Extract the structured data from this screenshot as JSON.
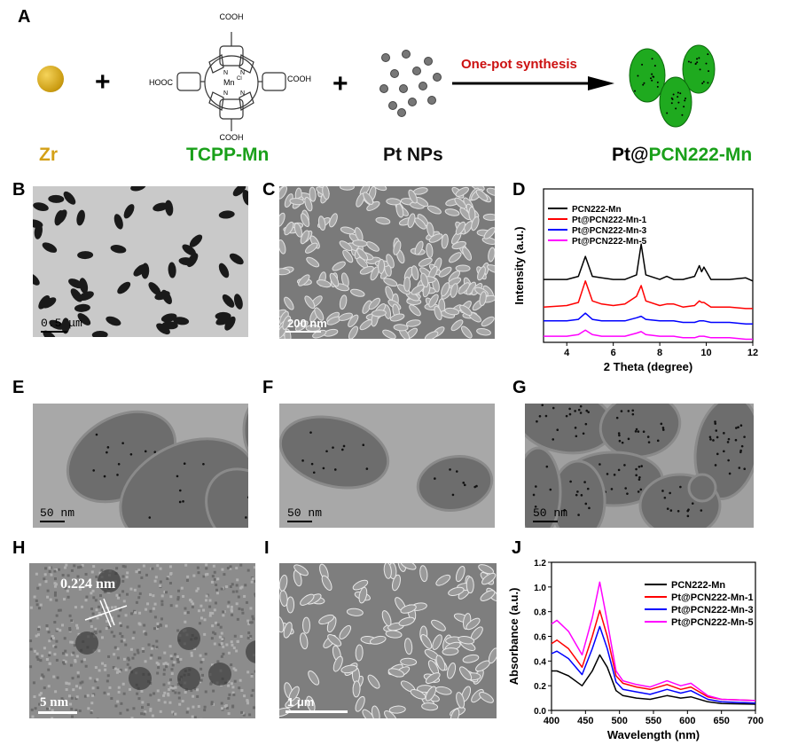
{
  "panel_labels": [
    "A",
    "B",
    "C",
    "D",
    "E",
    "F",
    "G",
    "H",
    "I",
    "J"
  ],
  "scheme": {
    "zr_label": "Zr",
    "plus": "+",
    "tcpp_label": "TCPP-Mn",
    "molecule_labels": {
      "cooh": "COOH",
      "hooc": "HOOC",
      "metal": "Mn",
      "ligand": "Cl",
      "n": "N"
    },
    "pt_label": "Pt NPs",
    "arrow_label": "One-pot synthesis",
    "product_prefix": "Pt@",
    "product_main": "PCN222-Mn",
    "colors": {
      "zr": "#d4a017",
      "green": "#1aa01a",
      "red": "#cc1111"
    }
  },
  "micrographs": {
    "B": {
      "scale": "0.5 μm"
    },
    "C": {
      "scale": "200 nm"
    },
    "E": {
      "scale": "50 nm"
    },
    "F": {
      "scale": "50 nm"
    },
    "G": {
      "scale": "50 nm"
    },
    "H": {
      "scale": "5 nm",
      "annotation": "0.224 nm"
    },
    "I": {
      "scale": "1 μm"
    }
  },
  "chart_data": [
    {
      "panel": "D",
      "type": "line",
      "xlabel": "2 Theta (degree)",
      "ylabel": "Intensity (a.u.)",
      "xlim": [
        3,
        12
      ],
      "xticks": [
        4,
        6,
        8,
        10,
        12
      ],
      "ylim": [
        0,
        100
      ],
      "yticks_shown": false,
      "legend": "top-left",
      "x": [
        3,
        4,
        4.5,
        4.8,
        5.1,
        5.5,
        6,
        6.5,
        7.0,
        7.2,
        7.4,
        8,
        8.3,
        8.6,
        9,
        9.5,
        9.7,
        9.8,
        9.9,
        10.2,
        11,
        11.7,
        12
      ],
      "series": [
        {
          "name": "PCN222-Mn",
          "color": "#000000",
          "values": [
            41,
            41,
            43,
            56,
            43,
            42,
            41,
            41,
            44,
            64,
            44,
            41,
            43,
            41,
            41,
            43,
            50,
            46,
            49,
            41,
            41,
            42,
            40
          ]
        },
        {
          "name": "Pt@PCN222-Mn-1",
          "color": "#ff0000",
          "values": [
            23,
            24,
            26,
            40,
            27,
            25,
            24,
            25,
            30,
            37,
            27,
            24,
            25,
            25,
            23,
            24,
            27,
            26,
            26,
            23,
            23,
            22,
            22
          ]
        },
        {
          "name": "Pt@PCN222-Mn-3",
          "color": "#0000ff",
          "values": [
            14,
            14,
            15,
            19,
            15,
            14,
            14,
            14,
            16,
            17,
            15,
            14,
            14,
            14,
            13,
            13,
            14,
            14,
            14,
            13,
            13,
            12,
            12
          ]
        },
        {
          "name": "Pt@PCN222-Mn-5",
          "color": "#ff00ff",
          "values": [
            4,
            4,
            5,
            8,
            5,
            4,
            4,
            4,
            6,
            7,
            5,
            4,
            4,
            4,
            3,
            3,
            4,
            4,
            4,
            3,
            3,
            2,
            2
          ]
        }
      ]
    },
    {
      "panel": "J",
      "type": "line",
      "xlabel": "Wavelength (nm)",
      "ylabel": "Absorbance (a.u.)",
      "xlim": [
        400,
        700
      ],
      "xticks": [
        400,
        450,
        500,
        550,
        600,
        650,
        700
      ],
      "ylim": [
        0,
        1.2
      ],
      "yticks": [
        "0.0",
        "0.2",
        "0.4",
        "0.6",
        "0.8",
        "1.0",
        "1.2"
      ],
      "legend": "top-right",
      "x": [
        400,
        408,
        425,
        445,
        460,
        471,
        482,
        495,
        505,
        525,
        545,
        570,
        590,
        605,
        630,
        650,
        700
      ],
      "series": [
        {
          "name": "PCN222-Mn",
          "color": "#000000",
          "values": [
            0.32,
            0.32,
            0.28,
            0.2,
            0.32,
            0.45,
            0.35,
            0.16,
            0.12,
            0.1,
            0.09,
            0.12,
            0.1,
            0.11,
            0.07,
            0.055,
            0.05
          ]
        },
        {
          "name": "Pt@PCN222-Mn-1",
          "color": "#ff0000",
          "values": [
            0.54,
            0.57,
            0.5,
            0.35,
            0.6,
            0.81,
            0.6,
            0.28,
            0.22,
            0.19,
            0.17,
            0.21,
            0.17,
            0.19,
            0.11,
            0.09,
            0.08
          ]
        },
        {
          "name": "Pt@PCN222-Mn-3",
          "color": "#0000ff",
          "values": [
            0.46,
            0.48,
            0.42,
            0.29,
            0.5,
            0.68,
            0.5,
            0.23,
            0.17,
            0.15,
            0.13,
            0.17,
            0.14,
            0.16,
            0.09,
            0.07,
            0.06
          ]
        },
        {
          "name": "Pt@PCN222-Mn-5",
          "color": "#ff00ff",
          "values": [
            0.7,
            0.73,
            0.64,
            0.45,
            0.75,
            1.04,
            0.72,
            0.32,
            0.24,
            0.21,
            0.19,
            0.24,
            0.2,
            0.22,
            0.12,
            0.09,
            0.08
          ]
        }
      ]
    }
  ]
}
